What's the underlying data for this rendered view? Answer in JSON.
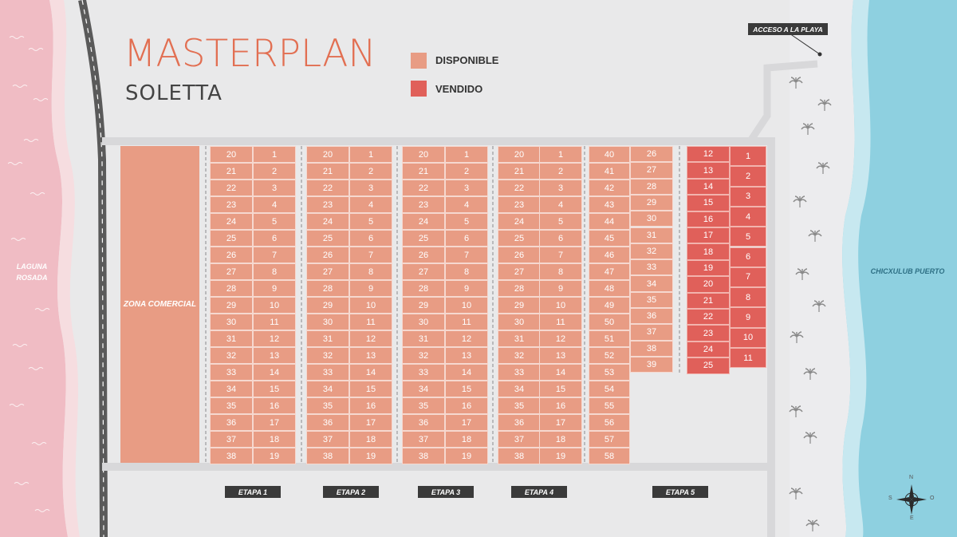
{
  "title": "MASTERPLAN",
  "subtitle": "SOLETTA",
  "legend": [
    {
      "label": "DISPONIBLE",
      "color": "#e89c84"
    },
    {
      "label": "VENDIDO",
      "color": "#e0605a"
    }
  ],
  "labels": {
    "acceso": "ACCESO A LA PLAYA",
    "laguna_line1": "LAGUNA",
    "laguna_line2": "ROSADA",
    "chicxulub": "CHICXULUB PUERTO",
    "zona_comercial": "ZONA COMERCIAL"
  },
  "etapas": [
    "ETAPA 1",
    "ETAPA 2",
    "ETAPA 3",
    "ETAPA 4",
    "ETAPA 5"
  ],
  "compass": {
    "n": "N",
    "s": "S",
    "e": "E",
    "o": "O"
  },
  "blocks": {
    "std_left": [
      "20",
      "21",
      "22",
      "23",
      "24",
      "25",
      "26",
      "27",
      "28",
      "29",
      "30",
      "31",
      "32",
      "33",
      "34",
      "35",
      "36",
      "37",
      "38"
    ],
    "std_right": [
      "1",
      "2",
      "3",
      "4",
      "5",
      "6",
      "7",
      "8",
      "9",
      "10",
      "11",
      "12",
      "13",
      "14",
      "15",
      "16",
      "17",
      "18",
      "19"
    ],
    "etapa5_left": [
      "40",
      "41",
      "42",
      "43",
      "44",
      "45",
      "46",
      "47",
      "48",
      "49",
      "50",
      "51",
      "52",
      "53",
      "54",
      "55",
      "56",
      "57",
      "58"
    ],
    "etapa5_right": [
      "26",
      "27",
      "28",
      "29",
      "30",
      "31",
      "32",
      "33",
      "34",
      "35",
      "36",
      "37",
      "38",
      "39"
    ],
    "sold_left": [
      "12",
      "13",
      "14",
      "15",
      "16",
      "17",
      "18",
      "19",
      "20",
      "21",
      "22",
      "23",
      "24",
      "25"
    ],
    "sold_right": [
      "1",
      "2",
      "3",
      "4",
      "5",
      "6",
      "7",
      "8",
      "9",
      "10",
      "11"
    ]
  },
  "colors": {
    "available": "#e89c84",
    "sold": "#e0605a",
    "lagoon": "#f0bcc4",
    "sea": "#8ed0e0",
    "road": "#555555"
  }
}
